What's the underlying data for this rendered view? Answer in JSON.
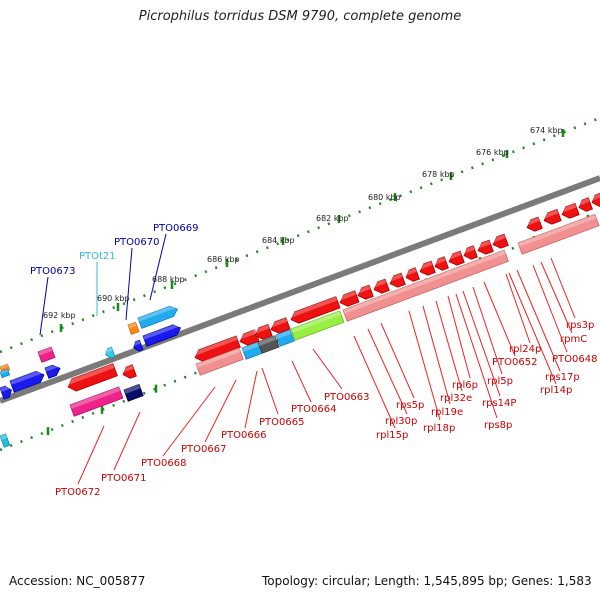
{
  "title": "Picrophilus torridus DSM 9790, complete genome",
  "footer": {
    "accession": "Accession: NC_005877",
    "summary": "Topology: circular; Length: 1,545,895 bp; Genes: 1,583"
  },
  "colors": {
    "backbone": "#7a7a7a",
    "ruler_dot": "#1a8a1a",
    "forward_label": "#0000b0",
    "rna_label": "#33bbdd",
    "reverse_label": "#cc0000",
    "leader_red": "#ee2222"
  },
  "ruler_ticks": [
    "674 kbp",
    "676 kbp",
    "678 kbp",
    "680 kbp",
    "682 kbp",
    "684 kbp",
    "686 kbp",
    "688 kbp",
    "690 kbp",
    "692 kbp"
  ],
  "forward_labels": [
    "PTO0669",
    "PTO0670",
    "PTOt21",
    "PTO0673"
  ],
  "reverse_labels": [
    "rps3p",
    "rpmC",
    "PTO0648",
    "rpl24p",
    "rps17p",
    "rpl14p",
    "PTO0652",
    "rpl5p",
    "rpl6p",
    "rps14P",
    "rpl32e",
    "rps8p",
    "rpl19e",
    "rpl18p",
    "rps5p",
    "rpl30p",
    "rpl15p",
    "PTO0663",
    "PTO0664",
    "PTO0665",
    "PTO0666",
    "PTO0667",
    "PTO0668",
    "PTO0671",
    "PTO0672"
  ]
}
